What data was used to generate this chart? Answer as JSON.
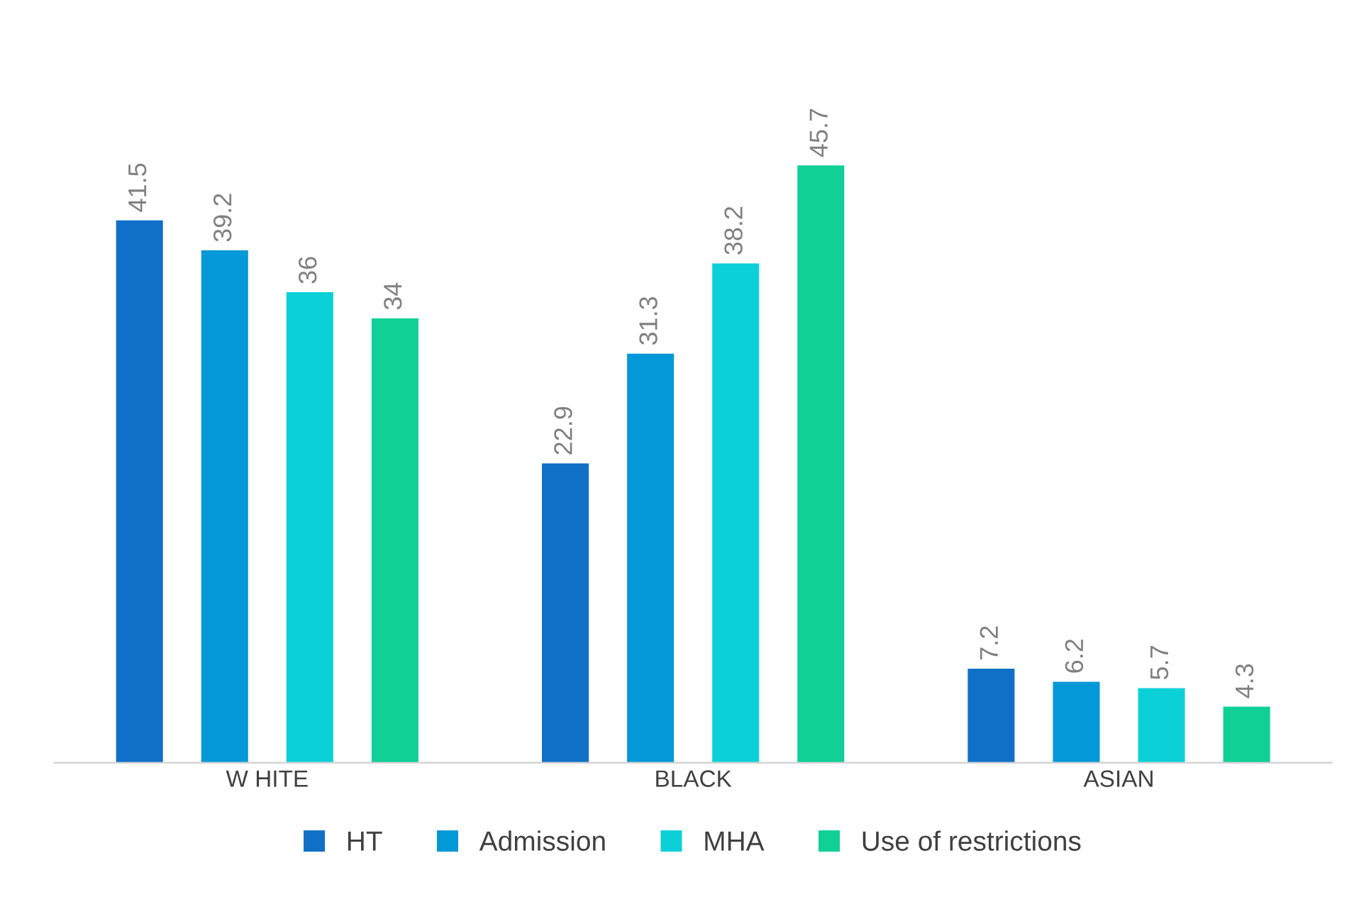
{
  "chart_data": {
    "type": "bar",
    "categories": [
      "W HITE",
      "BLACK",
      "ASIAN"
    ],
    "series": [
      {
        "name": "HT",
        "color": "#1070c8",
        "values": [
          41.5,
          22.9,
          7.2
        ]
      },
      {
        "name": "Admission",
        "color": "#0398d8",
        "values": [
          39.2,
          31.3,
          6.2
        ]
      },
      {
        "name": "MHA",
        "color": "#0cd0d8",
        "values": [
          36,
          38.2,
          5.7
        ]
      },
      {
        "name": "Use of restrictions",
        "color": "#10d096",
        "values": [
          34,
          45.7,
          4.3
        ]
      }
    ],
    "data_labels": true,
    "legend": "bottom",
    "grid": false
  }
}
